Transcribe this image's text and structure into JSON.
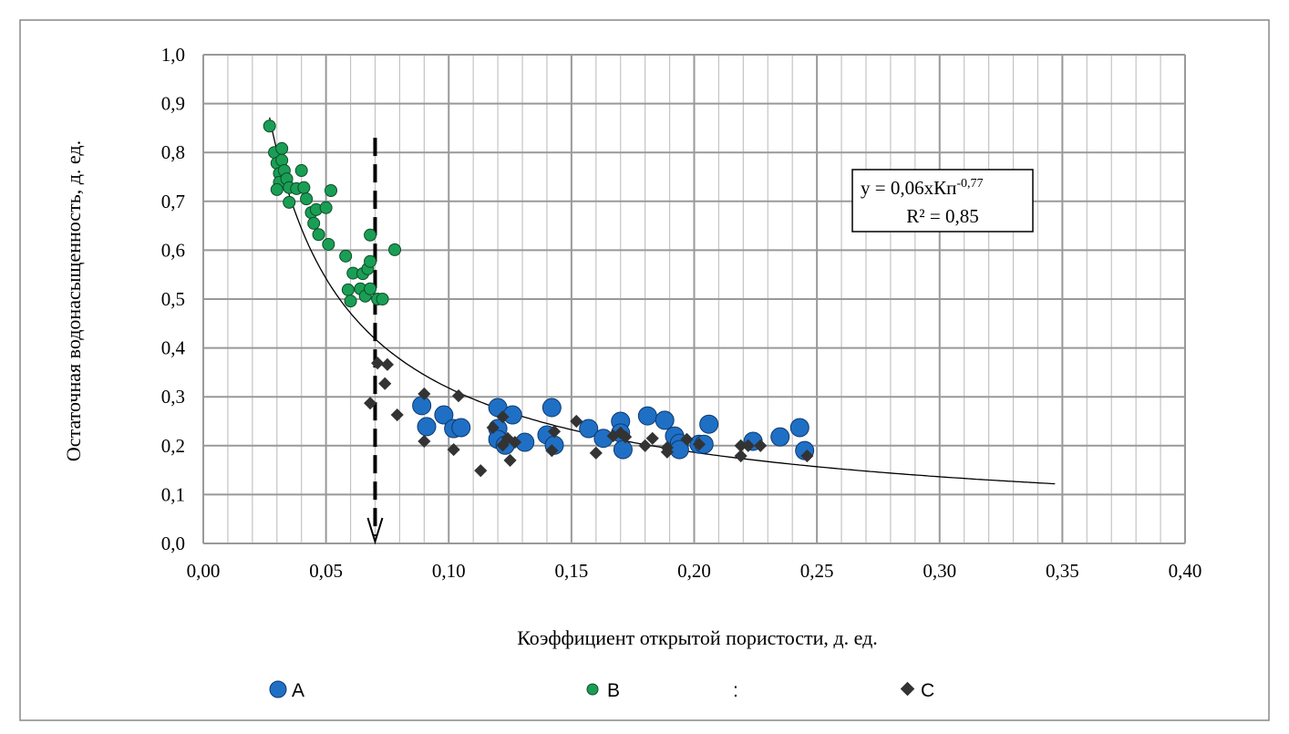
{
  "chart_data": {
    "type": "scatter",
    "xlabel": "Коэффициент открытой пористости, д. ед.",
    "ylabel": "Остаточная водонасыщенность, д. ед.",
    "xlim": [
      0,
      0.4
    ],
    "ylim": [
      0,
      1.0
    ],
    "xticks": [
      "0,00",
      "0,05",
      "0,10",
      "0,15",
      "0,20",
      "0,25",
      "0,30",
      "0,35",
      "0,40"
    ],
    "yticks": [
      "0,0",
      "0,1",
      "0,2",
      "0,3",
      "0,4",
      "0,5",
      "0,6",
      "0,7",
      "0,8",
      "0,9",
      "1,0"
    ],
    "grid": true,
    "legend_placement": "bottom",
    "legend_extra_mark": ":",
    "trendline": {
      "type": "power",
      "a": 0.06,
      "b": -0.77,
      "x_range": [
        0.027,
        0.347
      ],
      "equation_prefix": "y = 0,06xКп",
      "equation_exponent": "-0,77",
      "r2_label": "R² = 0,85"
    },
    "annotation_arrow": {
      "x": 0.07,
      "y_from": 0.83,
      "y_to": 0.0,
      "style": "dashed"
    },
    "series": [
      {
        "name": "A",
        "marker": "circle-large",
        "color": "#1f6fc5",
        "points": [
          [
            0.089,
            0.282
          ],
          [
            0.091,
            0.239
          ],
          [
            0.098,
            0.263
          ],
          [
            0.102,
            0.235
          ],
          [
            0.105,
            0.237
          ],
          [
            0.12,
            0.278
          ],
          [
            0.12,
            0.235
          ],
          [
            0.12,
            0.213
          ],
          [
            0.123,
            0.201
          ],
          [
            0.126,
            0.263
          ],
          [
            0.131,
            0.207
          ],
          [
            0.14,
            0.222
          ],
          [
            0.142,
            0.278
          ],
          [
            0.143,
            0.201
          ],
          [
            0.157,
            0.235
          ],
          [
            0.163,
            0.215
          ],
          [
            0.17,
            0.25
          ],
          [
            0.17,
            0.226
          ],
          [
            0.171,
            0.192
          ],
          [
            0.181,
            0.261
          ],
          [
            0.188,
            0.252
          ],
          [
            0.192,
            0.22
          ],
          [
            0.194,
            0.205
          ],
          [
            0.194,
            0.192
          ],
          [
            0.202,
            0.203
          ],
          [
            0.204,
            0.203
          ],
          [
            0.206,
            0.244
          ],
          [
            0.224,
            0.209
          ],
          [
            0.235,
            0.218
          ],
          [
            0.243,
            0.237
          ],
          [
            0.245,
            0.19
          ]
        ]
      },
      {
        "name": "B",
        "marker": "circle-small",
        "color": "#1a9e55",
        "points": [
          [
            0.027,
            0.854
          ],
          [
            0.029,
            0.8
          ],
          [
            0.032,
            0.808
          ],
          [
            0.03,
            0.778
          ],
          [
            0.032,
            0.784
          ],
          [
            0.031,
            0.757
          ],
          [
            0.033,
            0.763
          ],
          [
            0.031,
            0.739
          ],
          [
            0.034,
            0.746
          ],
          [
            0.03,
            0.724
          ],
          [
            0.035,
            0.728
          ],
          [
            0.035,
            0.698
          ],
          [
            0.038,
            0.726
          ],
          [
            0.041,
            0.728
          ],
          [
            0.04,
            0.763
          ],
          [
            0.042,
            0.705
          ],
          [
            0.044,
            0.677
          ],
          [
            0.046,
            0.683
          ],
          [
            0.045,
            0.655
          ],
          [
            0.047,
            0.632
          ],
          [
            0.05,
            0.687
          ],
          [
            0.052,
            0.722
          ],
          [
            0.051,
            0.612
          ],
          [
            0.058,
            0.588
          ],
          [
            0.061,
            0.553
          ],
          [
            0.059,
            0.519
          ],
          [
            0.06,
            0.496
          ],
          [
            0.064,
            0.521
          ],
          [
            0.065,
            0.552
          ],
          [
            0.066,
            0.506
          ],
          [
            0.067,
            0.562
          ],
          [
            0.068,
            0.577
          ],
          [
            0.068,
            0.521
          ],
          [
            0.068,
            0.631
          ],
          [
            0.071,
            0.5
          ],
          [
            0.073,
            0.5
          ],
          [
            0.078,
            0.601
          ]
        ]
      },
      {
        "name": "C",
        "marker": "diamond",
        "color": "#333333",
        "points": [
          [
            0.071,
            0.369
          ],
          [
            0.075,
            0.366
          ],
          [
            0.074,
            0.327
          ],
          [
            0.068,
            0.287
          ],
          [
            0.079,
            0.263
          ],
          [
            0.09,
            0.306
          ],
          [
            0.09,
            0.209
          ],
          [
            0.102,
            0.192
          ],
          [
            0.104,
            0.302
          ],
          [
            0.113,
            0.149
          ],
          [
            0.118,
            0.237
          ],
          [
            0.122,
            0.259
          ],
          [
            0.122,
            0.201
          ],
          [
            0.124,
            0.215
          ],
          [
            0.125,
            0.17
          ],
          [
            0.127,
            0.207
          ],
          [
            0.142,
            0.19
          ],
          [
            0.143,
            0.229
          ],
          [
            0.152,
            0.25
          ],
          [
            0.16,
            0.185
          ],
          [
            0.167,
            0.22
          ],
          [
            0.17,
            0.226
          ],
          [
            0.172,
            0.218
          ],
          [
            0.18,
            0.2
          ],
          [
            0.183,
            0.215
          ],
          [
            0.189,
            0.196
          ],
          [
            0.189,
            0.187
          ],
          [
            0.197,
            0.213
          ],
          [
            0.202,
            0.203
          ],
          [
            0.219,
            0.2
          ],
          [
            0.219,
            0.179
          ],
          [
            0.222,
            0.2
          ],
          [
            0.227,
            0.2
          ],
          [
            0.246,
            0.179
          ]
        ]
      }
    ]
  }
}
